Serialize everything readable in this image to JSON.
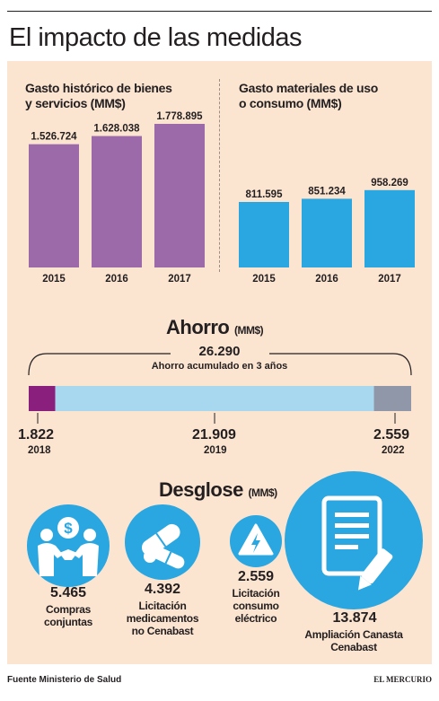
{
  "title": "El impacto de las medidas",
  "chart_data": [
    {
      "type": "bar",
      "title": "Gasto histórico de bienes y servicios (MM$)",
      "title_lines": [
        "Gasto histórico de bienes",
        "y servicios (MM$)"
      ],
      "categories": [
        "2015",
        "2016",
        "2017"
      ],
      "values": [
        1526724,
        1628038,
        1778895
      ],
      "value_labels": [
        "1.526.724",
        "1.628.038",
        "1.778.895"
      ],
      "color": "#9c6aa8"
    },
    {
      "type": "bar",
      "title": "Gasto materiales de uso o consumo (MM$)",
      "title_lines": [
        "Gasto materiales de uso",
        "o consumo (MM$)"
      ],
      "categories": [
        "2015",
        "2016",
        "2017"
      ],
      "values": [
        811595,
        851234,
        958269
      ],
      "value_labels": [
        "811.595",
        "851.234",
        "958.269"
      ],
      "color": "#2aa6e0"
    },
    {
      "type": "bar",
      "orientation": "stacked-horizontal",
      "title": "Ahorro",
      "title_unit": "(MM$)",
      "total_label": "26.290",
      "total_caption": "Ahorro acumulado en 3 años",
      "total": 26290,
      "categories": [
        "2018",
        "2019",
        "2022"
      ],
      "values": [
        1822,
        21909,
        2559
      ],
      "value_labels": [
        "1.822",
        "21.909",
        "2.559"
      ],
      "colors": [
        "#8a1f7e",
        "#a8d8ef",
        "#8f97a8"
      ]
    }
  ],
  "desglose": {
    "title": "Desglose",
    "unit": "(MM$)",
    "items": [
      {
        "value": "5.465",
        "label_lines": [
          "Compras",
          "conjuntas"
        ],
        "icon": "handshake-money-icon"
      },
      {
        "value": "4.392",
        "label_lines": [
          "Licitación",
          "medicamentos",
          "no Cenabast"
        ],
        "icon": "pills-icon"
      },
      {
        "value": "2.559",
        "label_lines": [
          "Licitación",
          "consumo",
          "eléctrico"
        ],
        "icon": "electricity-icon"
      },
      {
        "value": "13.874",
        "label_lines": [
          "Ampliación Canasta",
          "Cenabast"
        ],
        "icon": "document-pen-icon"
      }
    ]
  },
  "footer": {
    "source": "Fuente Ministerio de Salud",
    "brand": "EL MERCURIO"
  }
}
